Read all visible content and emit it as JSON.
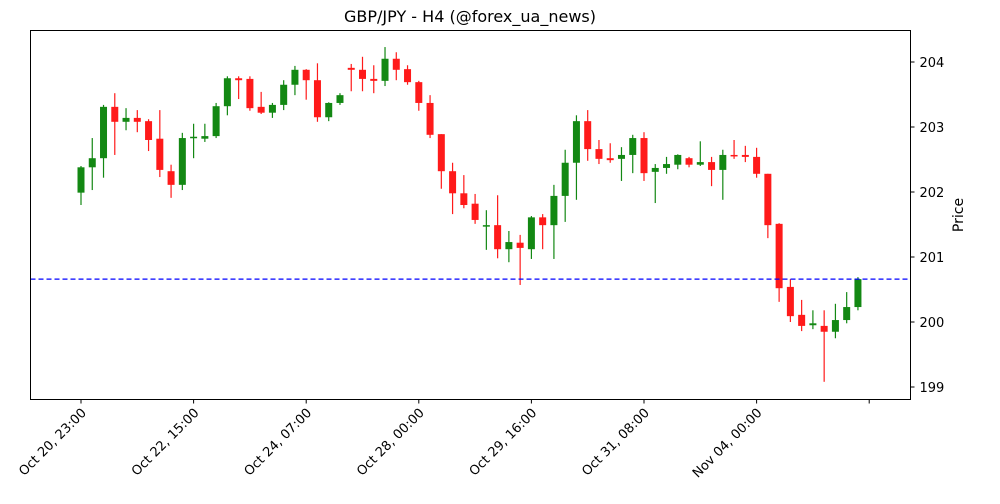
{
  "chart_data": {
    "type": "candlestick",
    "title": "GBP/JPY - H4 (@forex_ua_news)",
    "xlabel": "",
    "ylabel": "Price",
    "ylim": [
      198.8,
      204.48
    ],
    "yticks": [
      199,
      200,
      201,
      202,
      203,
      204
    ],
    "y_axis_position": "right",
    "grid": false,
    "legend": null,
    "xticks": [
      {
        "index": 0,
        "label": "Oct 20, 23:00"
      },
      {
        "index": 10,
        "label": "Oct 22, 15:00"
      },
      {
        "index": 20,
        "label": "Oct 24, 07:00"
      },
      {
        "index": 30,
        "label": "Oct 28, 00:00"
      },
      {
        "index": 40,
        "label": "Oct 29, 16:00"
      },
      {
        "index": 50,
        "label": "Oct 31, 08:00"
      },
      {
        "index": 60,
        "label": "Nov 04, 00:00"
      },
      {
        "index": 70,
        "label": ""
      }
    ],
    "hline": {
      "value": 200.66,
      "color": "#0000ff",
      "style": "dashed"
    },
    "colors": {
      "up": "#138813",
      "down": "#ff1a1a"
    },
    "series": [
      {
        "name": "GBP/JPY H4",
        "ohlc": [
          [
            201.99,
            202.38,
            202.4,
            201.8
          ],
          [
            202.38,
            202.52,
            202.83,
            202.03
          ],
          [
            202.52,
            203.31,
            203.34,
            202.22
          ],
          [
            203.31,
            203.08,
            203.52,
            202.57
          ],
          [
            203.08,
            203.14,
            203.29,
            202.95
          ],
          [
            203.14,
            203.08,
            203.26,
            202.92
          ],
          [
            203.09,
            202.8,
            203.12,
            202.63
          ],
          [
            202.82,
            202.34,
            203.26,
            202.23
          ],
          [
            202.32,
            202.11,
            202.42,
            201.91
          ],
          [
            202.11,
            202.83,
            202.91,
            202.03
          ],
          [
            202.83,
            202.85,
            203.05,
            202.52
          ],
          [
            202.82,
            202.86,
            203.05,
            202.77
          ],
          [
            202.86,
            203.32,
            203.37,
            202.83
          ],
          [
            203.32,
            203.75,
            203.78,
            203.18
          ],
          [
            203.75,
            203.72,
            203.78,
            203.43
          ],
          [
            203.74,
            203.29,
            203.78,
            203.25
          ],
          [
            203.31,
            203.22,
            203.54,
            203.2
          ],
          [
            203.22,
            203.34,
            203.37,
            203.14
          ],
          [
            203.34,
            203.65,
            203.72,
            203.26
          ],
          [
            203.65,
            203.88,
            203.94,
            203.49
          ],
          [
            203.88,
            203.72,
            203.89,
            203.42
          ],
          [
            203.72,
            203.15,
            203.98,
            203.08
          ],
          [
            203.15,
            203.37,
            203.38,
            203.09
          ],
          [
            203.37,
            203.49,
            203.52,
            203.34
          ],
          [
            203.91,
            203.88,
            203.97,
            203.55
          ],
          [
            203.88,
            203.74,
            204.08,
            203.55
          ],
          [
            203.74,
            203.71,
            203.95,
            203.52
          ],
          [
            203.71,
            204.05,
            204.23,
            203.63
          ],
          [
            204.05,
            203.88,
            204.15,
            203.72
          ],
          [
            203.89,
            203.69,
            203.95,
            203.65
          ],
          [
            203.69,
            203.37,
            203.71,
            203.25
          ],
          [
            203.37,
            202.88,
            203.49,
            202.83
          ],
          [
            202.89,
            202.32,
            202.89,
            202.05
          ],
          [
            202.32,
            201.98,
            202.45,
            201.66
          ],
          [
            201.98,
            201.8,
            202.26,
            201.75
          ],
          [
            201.82,
            201.57,
            201.97,
            201.51
          ],
          [
            201.48,
            201.49,
            201.72,
            201.11
          ],
          [
            201.49,
            201.12,
            201.95,
            200.98
          ],
          [
            201.12,
            201.23,
            201.4,
            200.92
          ],
          [
            201.22,
            201.14,
            201.34,
            200.57
          ],
          [
            201.12,
            201.61,
            201.63,
            200.97
          ],
          [
            201.61,
            201.49,
            201.66,
            201.12
          ],
          [
            201.49,
            201.94,
            202.11,
            200.97
          ],
          [
            201.94,
            202.45,
            202.65,
            201.54
          ],
          [
            202.45,
            203.09,
            203.18,
            201.88
          ],
          [
            203.09,
            202.66,
            203.26,
            202.48
          ],
          [
            202.66,
            202.51,
            202.8,
            202.43
          ],
          [
            202.52,
            202.49,
            202.75,
            202.45
          ],
          [
            202.51,
            202.57,
            202.69,
            202.17
          ],
          [
            202.57,
            202.83,
            202.88,
            202.29
          ],
          [
            202.83,
            202.29,
            202.92,
            202.17
          ],
          [
            202.31,
            202.37,
            202.43,
            201.83
          ],
          [
            202.37,
            202.43,
            202.54,
            202.28
          ],
          [
            202.42,
            202.57,
            202.58,
            202.35
          ],
          [
            202.52,
            202.42,
            202.54,
            202.38
          ],
          [
            202.42,
            202.46,
            202.78,
            202.4
          ],
          [
            202.46,
            202.34,
            202.54,
            202.09
          ],
          [
            202.34,
            202.57,
            202.65,
            201.88
          ],
          [
            202.57,
            202.55,
            202.8,
            202.51
          ],
          [
            202.57,
            202.54,
            202.71,
            202.46
          ],
          [
            202.54,
            202.28,
            202.68,
            202.22
          ],
          [
            202.28,
            201.49,
            202.28,
            201.29
          ],
          [
            201.51,
            200.52,
            201.52,
            200.31
          ],
          [
            200.54,
            200.09,
            200.66,
            200.0
          ],
          [
            200.11,
            199.94,
            200.34,
            199.86
          ],
          [
            199.95,
            199.98,
            200.18,
            199.89
          ],
          [
            199.94,
            199.85,
            200.18,
            199.08
          ],
          [
            199.85,
            200.03,
            200.28,
            199.75
          ],
          [
            200.03,
            200.23,
            200.46,
            199.98
          ],
          [
            200.23,
            200.66,
            200.69,
            200.18
          ]
        ],
        "ohlc_order": [
          "open",
          "close",
          "high",
          "low"
        ]
      }
    ]
  }
}
